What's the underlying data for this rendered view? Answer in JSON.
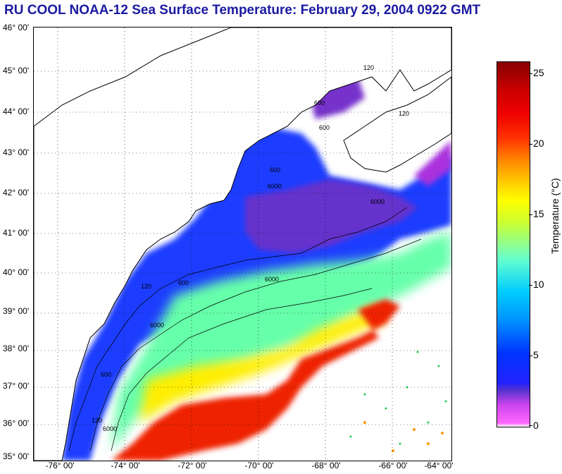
{
  "title": "RU COOL  NOAA-12  Sea Surface Temperature:  February 29, 2004 0922 GMT",
  "latitude_labels": [
    "46° 00'",
    "45° 00'",
    "44° 00'",
    "43° 00'",
    "42° 00'",
    "41° 00'",
    "40° 00'",
    "39° 00'",
    "38° 00'",
    "37° 00'",
    "36° 00'",
    "35° 00'"
  ],
  "longitude_labels": [
    "-76° 00'",
    "-74° 00'",
    "-72° 00'",
    "-70° 00'",
    "-68° 00'",
    "-66° 00'",
    "-64° 00'"
  ],
  "contour_labels": [
    "120",
    "120",
    "120",
    "120",
    "600",
    "600",
    "600",
    "600",
    "600",
    "6000",
    "6000",
    "6000",
    "6000",
    "6000"
  ],
  "colorbar": {
    "label": "Temperature (°C)",
    "ticks": [
      "25",
      "20",
      "15",
      "10",
      "5",
      "0"
    ],
    "tick_values": [
      25,
      20,
      15,
      10,
      5,
      0
    ],
    "range": [
      0,
      26
    ]
  },
  "colors": {
    "title": "#1a1aa0",
    "land": "#ffffff",
    "cold": "#2222ff",
    "warm": "#ff2200",
    "coast": "#000000"
  }
}
